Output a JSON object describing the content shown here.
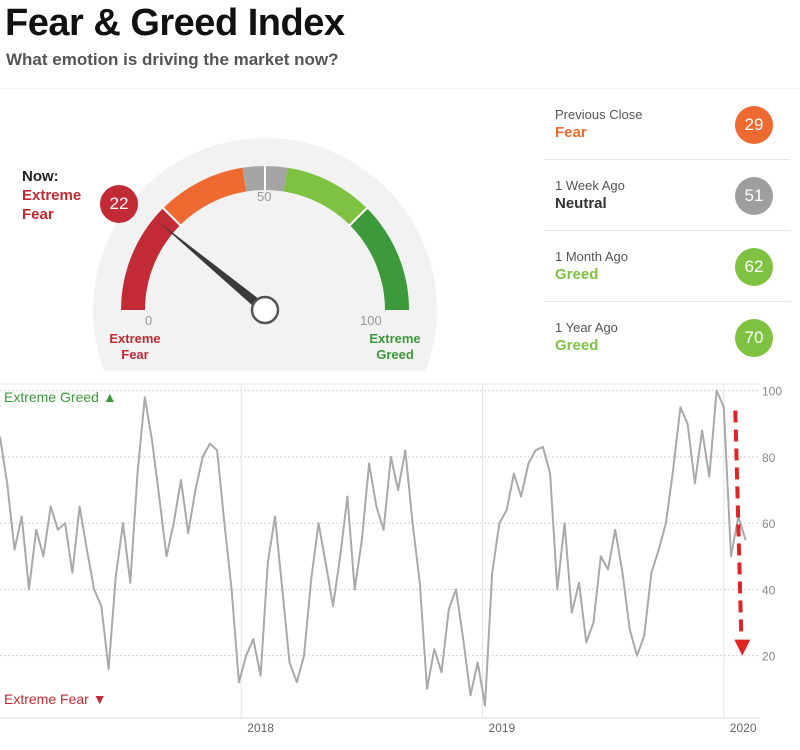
{
  "header": {
    "title": "Fear & Greed Index",
    "subtitle": "What emotion is driving the market now?"
  },
  "gauge": {
    "now_label": "Now:",
    "now_rating": "Extreme Fear",
    "now_value": 22,
    "min_label": "0",
    "mid_label": "50",
    "max_label": "100",
    "min_caption": "Extreme Fear",
    "max_caption": "Extreme Greed",
    "colors": {
      "extreme_fear": "#c22b35",
      "fear": "#ef6a31",
      "neutral": "#a5a5a5",
      "greed": "#7fc242",
      "extreme_greed": "#3d9a3a"
    }
  },
  "history": [
    {
      "label": "Previous Close",
      "rating": "Fear",
      "value": 29,
      "color": "#ef6a31"
    },
    {
      "label": "1 Week Ago",
      "rating": "Neutral",
      "value": 51,
      "color": "#9e9e9e"
    },
    {
      "label": "1 Month Ago",
      "rating": "Greed",
      "value": 62,
      "color": "#7fc242"
    },
    {
      "label": "1 Year Ago",
      "rating": "Greed",
      "value": 70,
      "color": "#7fc242"
    }
  ],
  "chart_data": {
    "type": "line",
    "top_label": "Extreme Greed ▲",
    "bottom_label": "Extreme Fear ▼",
    "x_ticks": [
      "2018",
      "2019",
      "2020"
    ],
    "y_ticks": [
      20,
      40,
      60,
      80,
      100
    ],
    "ylim": [
      3,
      102
    ],
    "xlim": [
      2017.0,
      2020.15
    ],
    "grid": true,
    "annotation": "red dashed downward arrow near 2020 from 94 to 20",
    "series": [
      {
        "color": "#a9a9a9",
        "x": [
          2017.0,
          2017.03,
          2017.06,
          2017.09,
          2017.12,
          2017.15,
          2017.18,
          2017.21,
          2017.24,
          2017.27,
          2017.3,
          2017.33,
          2017.36,
          2017.39,
          2017.42,
          2017.45,
          2017.48,
          2017.51,
          2017.54,
          2017.57,
          2017.6,
          2017.63,
          2017.66,
          2017.69,
          2017.72,
          2017.75,
          2017.78,
          2017.81,
          2017.84,
          2017.87,
          2017.9,
          2017.93,
          2017.96,
          2017.99,
          2018.02,
          2018.05,
          2018.08,
          2018.11,
          2018.14,
          2018.17,
          2018.2,
          2018.23,
          2018.26,
          2018.29,
          2018.32,
          2018.35,
          2018.38,
          2018.41,
          2018.44,
          2018.47,
          2018.5,
          2018.53,
          2018.56,
          2018.59,
          2018.62,
          2018.65,
          2018.68,
          2018.71,
          2018.74,
          2018.77,
          2018.8,
          2018.83,
          2018.86,
          2018.89,
          2018.92,
          2018.95,
          2018.98,
          2019.01,
          2019.04,
          2019.07,
          2019.1,
          2019.13,
          2019.16,
          2019.19,
          2019.22,
          2019.25,
          2019.28,
          2019.31,
          2019.34,
          2019.37,
          2019.4,
          2019.43,
          2019.46,
          2019.49,
          2019.52,
          2019.55,
          2019.58,
          2019.61,
          2019.64,
          2019.67,
          2019.7,
          2019.73,
          2019.76,
          2019.79,
          2019.82,
          2019.85,
          2019.88,
          2019.91,
          2019.94,
          2019.97,
          2020.0,
          2020.03,
          2020.06,
          2020.09
        ],
        "y": [
          86,
          72,
          52,
          62,
          40,
          58,
          50,
          65,
          58,
          60,
          45,
          65,
          52,
          40,
          35,
          16,
          44,
          60,
          42,
          75,
          98,
          85,
          68,
          50,
          60,
          73,
          57,
          70,
          80,
          84,
          82,
          60,
          40,
          12,
          20,
          25,
          14,
          48,
          62,
          40,
          18,
          12,
          20,
          43,
          60,
          48,
          35,
          50,
          68,
          40,
          55,
          78,
          65,
          58,
          80,
          70,
          82,
          60,
          42,
          10,
          22,
          15,
          34,
          40,
          25,
          8,
          18,
          5,
          45,
          60,
          64,
          75,
          68,
          78,
          82,
          83,
          75,
          40,
          60,
          33,
          42,
          24,
          30,
          50,
          46,
          58,
          45,
          28,
          20,
          26,
          45,
          52,
          60,
          76,
          95,
          90,
          72,
          88,
          74,
          100,
          95,
          50,
          62,
          55
        ]
      }
    ]
  }
}
